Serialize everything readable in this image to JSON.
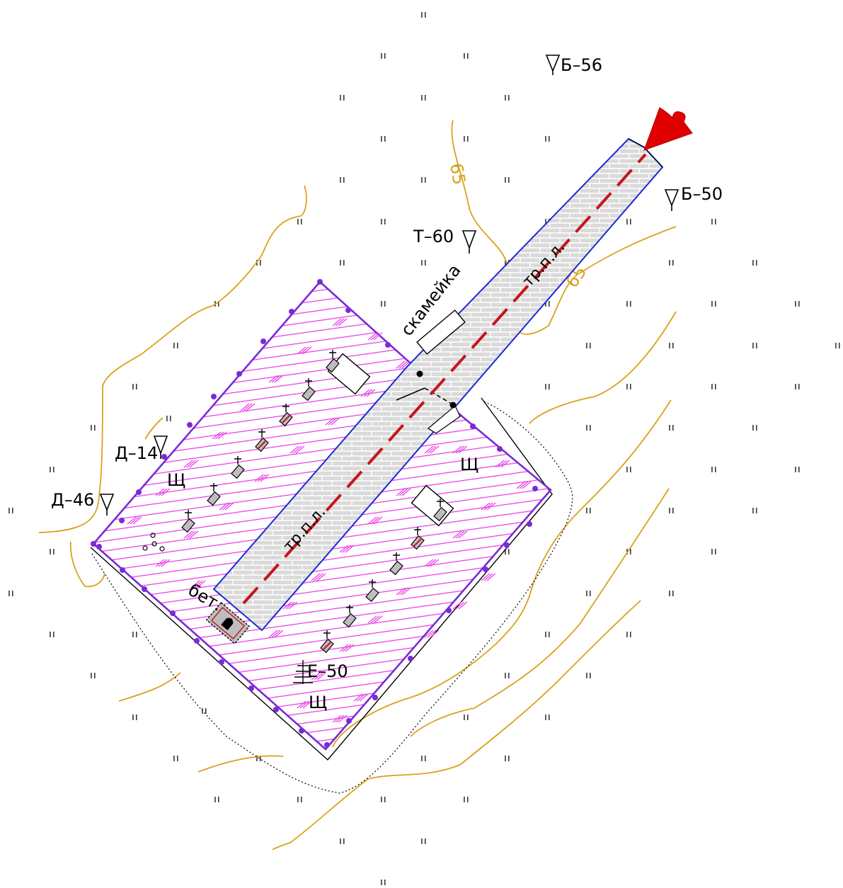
{
  "map": {
    "colors": {
      "contour": "#d9a21c",
      "cemetery_fill": "#e83ce8",
      "cemetery_border": "#7a2ad6",
      "path_border": "#1a2ad6",
      "path_fill": "#d9d9d9",
      "axis_line": "#c4161c",
      "arrow": "#e00000",
      "grave": "#bdbdbd"
    },
    "contour_labels": [
      "65",
      "65"
    ],
    "trees": [
      {
        "label": "Б–56",
        "symbol": "deciduous-tree"
      },
      {
        "label": "Б–50",
        "symbol": "deciduous-tree"
      },
      {
        "label": "Т–60",
        "symbol": "deciduous-tree"
      },
      {
        "label": "Д–14",
        "symbol": "deciduous-tree"
      },
      {
        "label": "Д–46",
        "symbol": "deciduous-tree"
      },
      {
        "label": "Е–50",
        "symbol": "coniferous-tree"
      }
    ],
    "feature_labels": {
      "bench": "скамейка",
      "path_top": "тр.п.л.",
      "path_bottom": "тр.п.л.",
      "concrete": "бет."
    },
    "gravel_symbol": "Щ",
    "grass_symbol": "ıı"
  }
}
